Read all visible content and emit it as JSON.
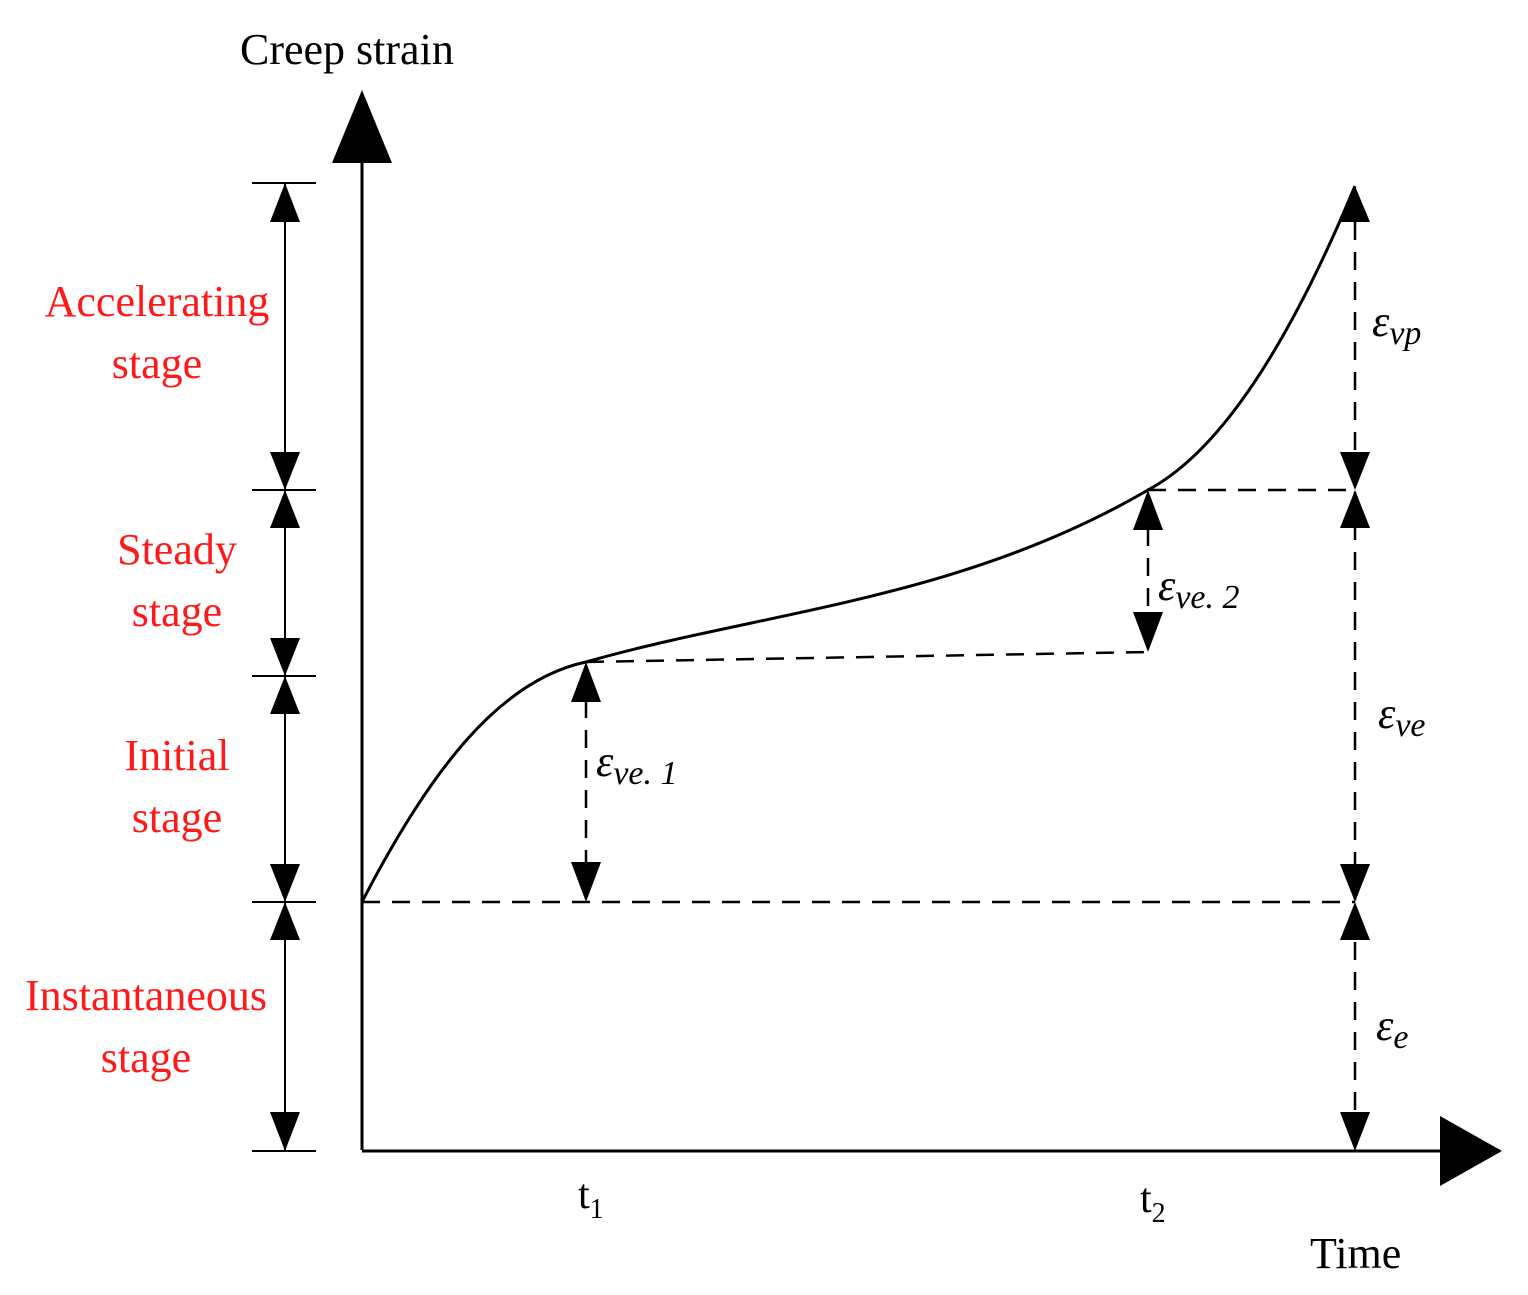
{
  "title": "Creep strain",
  "x_axis_label": "Time",
  "ticks": [
    {
      "base": "t",
      "sub": "1"
    },
    {
      "base": "t",
      "sub": "2"
    }
  ],
  "stages": [
    {
      "line1": "Accelerating",
      "line2": "stage"
    },
    {
      "line1": "Steady",
      "line2": "stage"
    },
    {
      "line1": "Initial",
      "line2": "stage"
    },
    {
      "line1": "Instantaneous",
      "line2": "stage"
    }
  ],
  "strains": {
    "eps_vp": {
      "sym": "ε",
      "sub": "vp"
    },
    "eps_ve": {
      "sym": "ε",
      "sub": "ve"
    },
    "eps_e": {
      "sym": "ε",
      "sub": "e"
    },
    "eps_ve1": {
      "sym": "ε",
      "sub": "ve. 1"
    },
    "eps_ve2": {
      "sym": "ε",
      "sub": "ve. 2"
    }
  },
  "colors": {
    "stage_text": "#ff1a1a",
    "line": "#000000"
  }
}
